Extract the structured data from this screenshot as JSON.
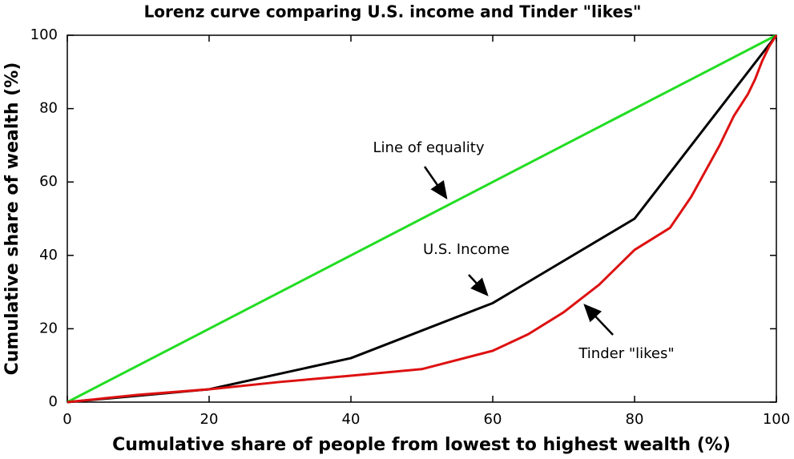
{
  "chart_data": {
    "type": "line",
    "title": "Lorenz curve comparing U.S. income and Tinder \"likes\"",
    "x_label": "Cumulative share of people from lowest to highest wealth (%)",
    "y_label": "Cumulative share of wealth (%)",
    "xlim": [
      0,
      100
    ],
    "ylim": [
      0,
      100
    ],
    "xticks": [
      0,
      20,
      40,
      60,
      80,
      100
    ],
    "yticks": [
      0,
      20,
      40,
      60,
      80,
      100
    ],
    "grid": false,
    "series": [
      {
        "name": "Line of equality",
        "color": "#22dd22",
        "x": [
          0,
          100
        ],
        "values": [
          0,
          100
        ]
      },
      {
        "name": "U.S. Income",
        "color": "#000000",
        "x": [
          0,
          20,
          40,
          60,
          80,
          100
        ],
        "values": [
          0,
          3.5,
          12,
          27,
          50,
          100
        ]
      },
      {
        "name": "Tinder \"likes\"",
        "color": "#dd1111",
        "x": [
          0,
          10,
          20,
          30,
          40,
          50,
          60,
          65,
          70,
          75,
          80,
          85,
          88,
          90,
          92,
          94,
          95,
          96,
          97,
          98,
          99,
          100
        ],
        "values": [
          0,
          2,
          3.5,
          5.5,
          7.2,
          9,
          14,
          18.5,
          24.5,
          32,
          41.5,
          47.5,
          56,
          63,
          70,
          78,
          81,
          84,
          88,
          93,
          97,
          100
        ]
      }
    ]
  }
}
